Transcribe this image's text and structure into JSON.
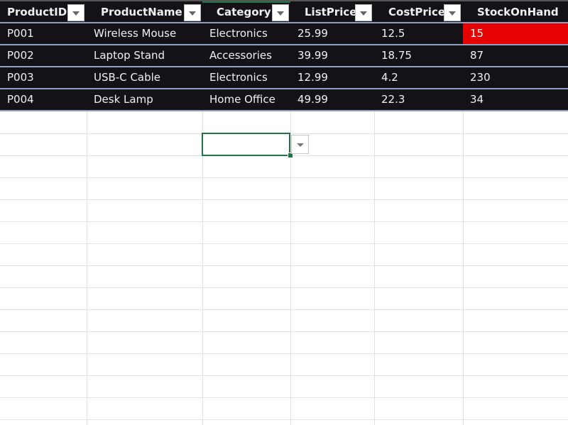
{
  "table": {
    "columns": [
      "ProductID",
      "ProductName",
      "Category",
      "ListPrice",
      "CostPrice",
      "StockOnHand"
    ],
    "rows": [
      [
        "P001",
        "Wireless Mouse",
        "Electronics",
        "25.99",
        "12.5",
        "15"
      ],
      [
        "P002",
        "Laptop Stand",
        "Accessories",
        "39.99",
        "18.75",
        "87"
      ],
      [
        "P003",
        "USB-C Cable",
        "Electronics",
        "12.99",
        "4.2",
        "230"
      ],
      [
        "P004",
        "Desk Lamp",
        "Home Office",
        "49.99",
        "22.3",
        "34"
      ]
    ],
    "highlight": {
      "row": 0,
      "column": "StockOnHand",
      "color": "#e60000"
    }
  },
  "colors": {
    "header_bg": "#141217",
    "selection": "#217346",
    "row_border": "#8ea0c4"
  },
  "selected_cell": {
    "value": "",
    "has_dropdown": true
  }
}
